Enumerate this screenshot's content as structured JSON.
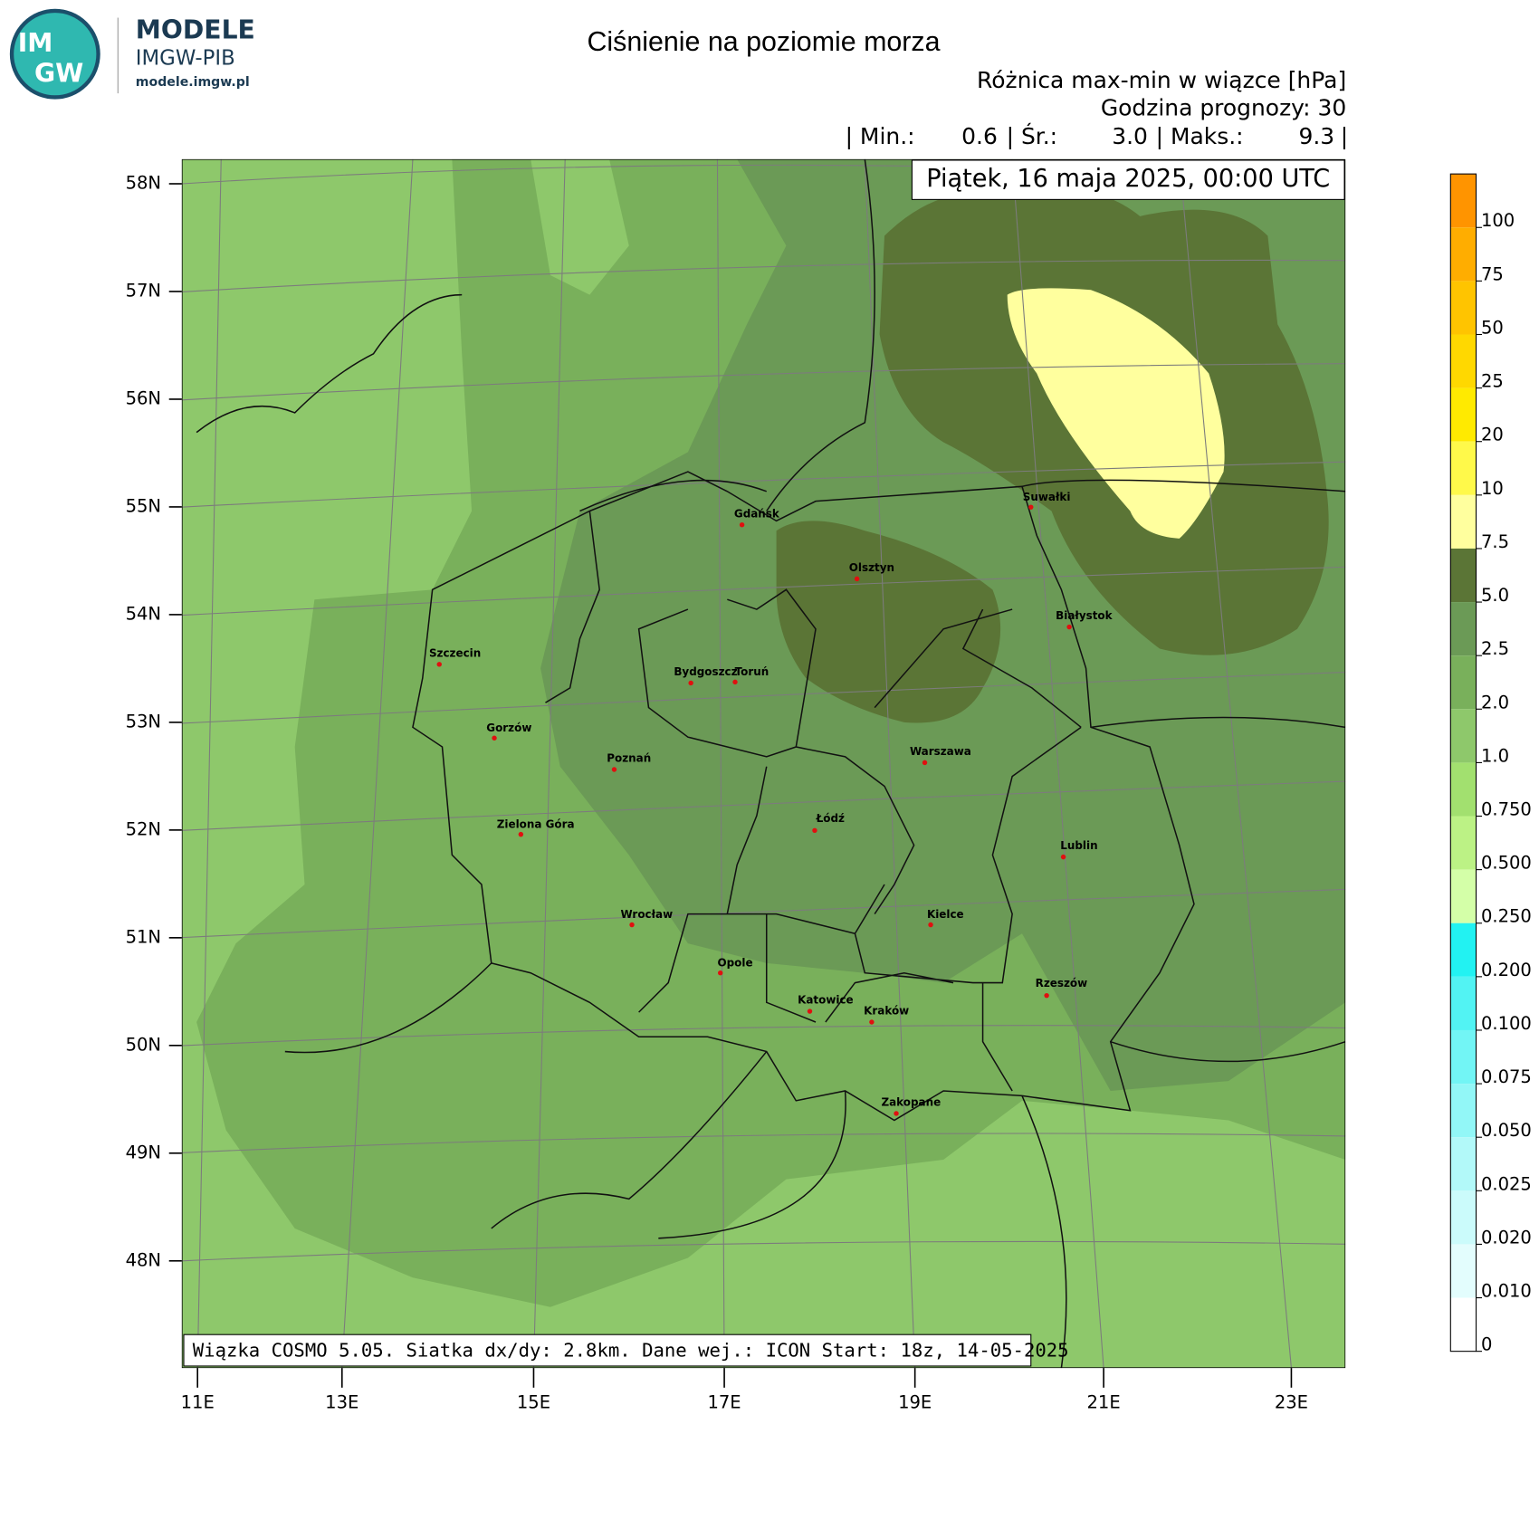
{
  "logo": {
    "top": "IM",
    "bottom": "GW",
    "name": "MODELE",
    "org": "IMGW-PIB",
    "url": "modele.imgw.pl"
  },
  "header": {
    "title": "Ciśnienie na poziomie morza",
    "field": "Różnica max-min w wiązce [hPa]",
    "forecast_hour": "Godzina prognozy: 30",
    "stats": {
      "min_label": "| Min.:",
      "min": "0.6",
      "mean_label": "| Śr.:",
      "mean": "3.0",
      "max_label": "| Maks.:",
      "max": "9.3",
      "end": "|"
    },
    "valid_time": "Piątek, 16 maja 2025, 00:00 UTC"
  },
  "footer": "Wiązka COSMO 5.05. Siatka dx/dy: 2.8km. Dane wej.: ICON Start: 18z, 14-05-2025",
  "lat_labels": [
    "58N",
    "57N",
    "56N",
    "55N",
    "54N",
    "53N",
    "52N",
    "51N",
    "50N",
    "49N",
    "48N"
  ],
  "lon_labels": [
    "11E",
    "13E",
    "15E",
    "17E",
    "19E",
    "21E",
    "23E"
  ],
  "cities": [
    "Gdańsk",
    "Olsztyn",
    "Suwałki",
    "Białystok",
    "Szczecin",
    "Bydgoszcz",
    "Toruń",
    "Gorzów",
    "Poznań",
    "Warszawa",
    "Zielona Góra",
    "Łódź",
    "Lublin",
    "Wrocław",
    "Kielce",
    "Opole",
    "Rzeszów",
    "Katowice",
    "Kraków",
    "Zakopane"
  ],
  "colorbar": {
    "levels": [
      "100",
      "75",
      "50",
      "25",
      "20",
      "10",
      "7.5",
      "5.0",
      "2.5",
      "2.0",
      "1.0",
      "0.750",
      "0.500",
      "0.250",
      "0.200",
      "0.100",
      "0.075",
      "0.050",
      "0.025",
      "0.020",
      "0.010",
      "0"
    ],
    "colors": [
      "#ff9400",
      "#ffad00",
      "#ffc400",
      "#ffd800",
      "#ffea00",
      "#fff94a",
      "#ffff9e",
      "#5b7536",
      "#6b9a56",
      "#79b05b",
      "#8ec86b",
      "#a2e06f",
      "#bcf285",
      "#d4ffa8",
      "#22f2f2",
      "#52f3f3",
      "#72f5f5",
      "#92f7f7",
      "#b2f9f9",
      "#cbfbfb",
      "#e3fdfd",
      "#ffffff"
    ]
  }
}
